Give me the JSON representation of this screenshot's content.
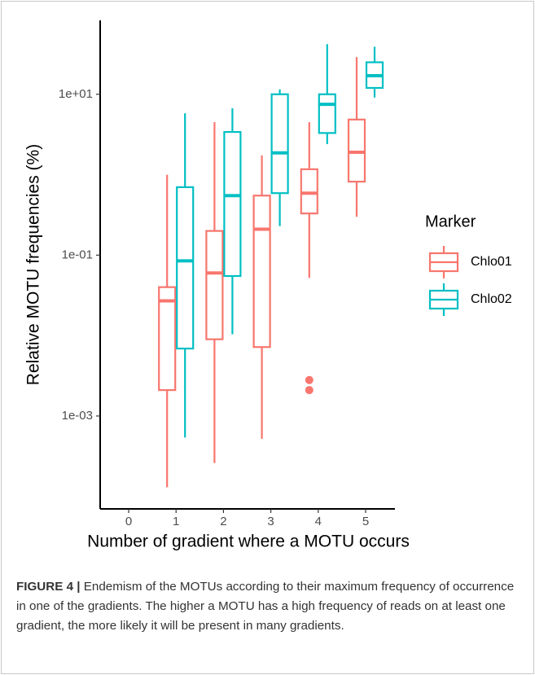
{
  "chart_data": {
    "type": "boxplot",
    "y_label": "Relative MOTU frequencies (%)",
    "x_label": "Number of gradient where a MOTU occurs",
    "categories": [
      "0",
      "1",
      "2",
      "3",
      "4",
      "5"
    ],
    "log_scale": true,
    "ylim": [
      7e-05,
      83
    ],
    "yticks": [
      {
        "value": 10,
        "label": "1e+01"
      },
      {
        "value": 0.1,
        "label": "1e-01"
      },
      {
        "value": 0.001,
        "label": "1e-03"
      }
    ],
    "legend_title": "Marker",
    "series": [
      {
        "name": "Chlo01",
        "color": "#f8766d",
        "min": [
          null,
          0.00013,
          0.00026,
          0.00052,
          0.052,
          0.3
        ],
        "q1": [
          null,
          0.0021,
          0.009,
          0.0072,
          0.33,
          0.82
        ],
        "median": [
          null,
          0.027,
          0.06,
          0.21,
          0.59,
          1.9
        ],
        "q3": [
          null,
          0.04,
          0.2,
          0.55,
          1.17,
          4.85
        ],
        "max": [
          null,
          1.0,
          4.5,
          1.74,
          4.5,
          29
        ],
        "outliers": [
          null,
          [],
          [],
          [],
          [
            0.0028,
            0.0021
          ],
          []
        ]
      },
      {
        "name": "Chlo02",
        "color": "#00bfc4",
        "min": [
          null,
          0.00054,
          0.0104,
          0.23,
          2.4,
          9.1
        ],
        "q1": [
          null,
          0.0069,
          0.055,
          0.59,
          3.3,
          12
        ],
        "median": [
          null,
          0.085,
          0.55,
          1.87,
          7.5,
          17
        ],
        "q3": [
          null,
          0.7,
          3.4,
          10,
          10,
          25
        ],
        "max": [
          null,
          5.8,
          6.7,
          11.5,
          42,
          39
        ],
        "outliers": [
          null,
          [],
          [],
          [],
          [],
          []
        ]
      }
    ]
  },
  "caption": {
    "label": "FIGURE 4 |",
    "text": "Endemism of the MOTUs according to their maximum frequency of occurrence in one of the gradients. The higher a MOTU has a high frequency of reads on at least one gradient, the more likely it will be present in many gradients."
  }
}
